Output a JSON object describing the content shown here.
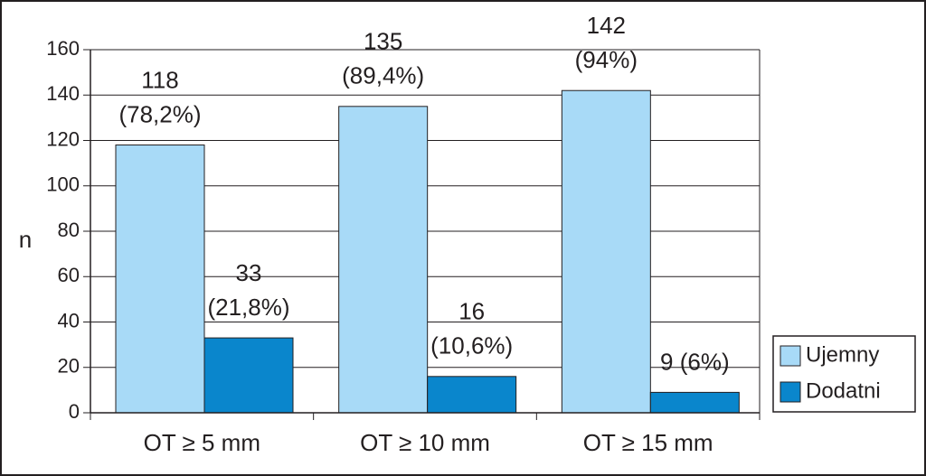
{
  "chart_data": {
    "type": "bar",
    "ylabel": "n",
    "categories": [
      "OT ≥ 5 mm",
      "OT ≥ 10 mm",
      "OT ≥ 15 mm"
    ],
    "series": [
      {
        "name": "Ujemny",
        "color": "#a8daf7",
        "values": [
          118,
          135,
          142
        ],
        "value_labels": [
          [
            "118",
            "(78,2%)"
          ],
          [
            "135",
            "(89,4%)"
          ],
          [
            "142",
            "(94%)"
          ]
        ]
      },
      {
        "name": "Dodatni",
        "color": "#0a86cc",
        "values": [
          33,
          16,
          9
        ],
        "value_labels": [
          [
            "33",
            "(21,8%)"
          ],
          [
            "16",
            "(10,6%)"
          ],
          [
            "9 (6%)"
          ]
        ]
      }
    ],
    "ylim": [
      0,
      160
    ],
    "yticks": [
      0,
      20,
      40,
      60,
      80,
      100,
      120,
      140,
      160
    ],
    "grid": true,
    "legend": "lower right"
  }
}
